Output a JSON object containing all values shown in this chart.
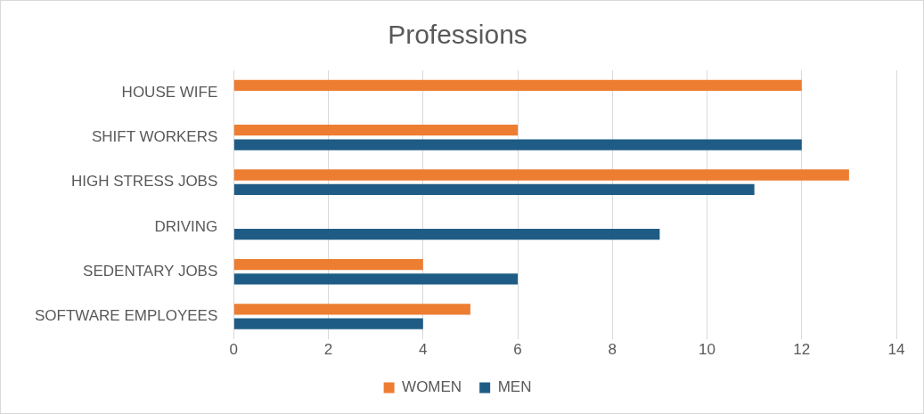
{
  "chart_data": {
    "type": "bar",
    "orientation": "horizontal",
    "title": "Professions",
    "categories": [
      "HOUSE WIFE",
      "SHIFT WORKERS",
      "HIGH STRESS JOBS",
      "DRIVING",
      "SEDENTARY JOBS",
      "SOFTWARE EMPLOYEES"
    ],
    "series": [
      {
        "name": "WOMEN",
        "color": "#ed7d31",
        "values": [
          12,
          6,
          13,
          null,
          4,
          5
        ]
      },
      {
        "name": "MEN",
        "color": "#1f5c85",
        "values": [
          null,
          12,
          11,
          9,
          6,
          4
        ]
      }
    ],
    "xlim": [
      0,
      14
    ],
    "xticks": [
      0,
      2,
      4,
      6,
      8,
      10,
      12,
      14
    ],
    "grid": "x",
    "legend": "bottom"
  }
}
